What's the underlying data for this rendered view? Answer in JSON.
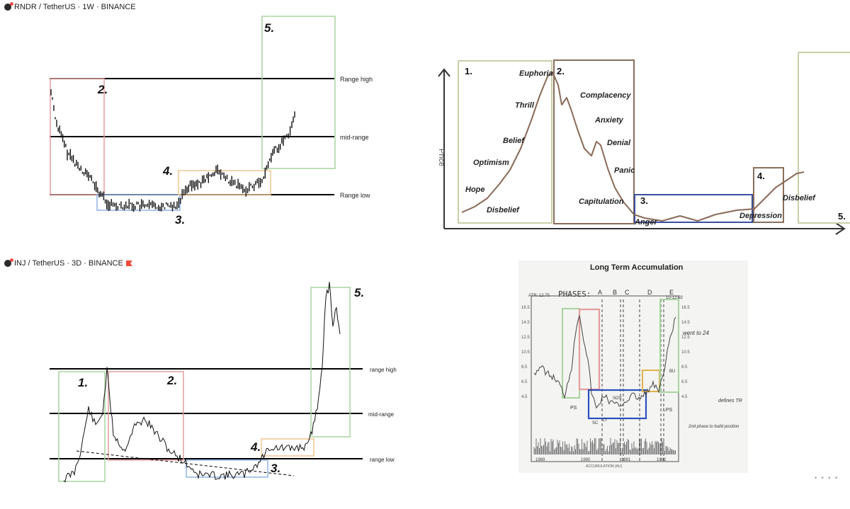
{
  "panels": {
    "rndr": {
      "header": "RNDR / TetherUS · 1W · BINANCE",
      "levels": {
        "high": "Range high",
        "mid": "mid-range",
        "low": "Range low"
      },
      "phases": {
        "p2": "2.",
        "p3": "3.",
        "p4": "4.",
        "p5": "5."
      }
    },
    "inj": {
      "header": "INJ / TetherUS · 3D · BINANCE",
      "levels": {
        "high": "range high",
        "mid": "mid-range",
        "low": "range low"
      },
      "phases": {
        "p1": "1.",
        "p2": "2.",
        "p3": "3.",
        "p4": "4.",
        "p5": "5."
      }
    },
    "cycle": {
      "y_axis_label": "Price",
      "phases": {
        "p1": "1.",
        "p2": "2.",
        "p3": "3.",
        "p4": "4.",
        "p5": "5."
      },
      "emotions": [
        "Euphoria",
        "Thrill",
        "Belief",
        "Optimism",
        "Hope",
        "Disbelief",
        "Complacency",
        "Anxiety",
        "Denial",
        "Panic",
        "Capitulation",
        "Anger",
        "Depression",
        "Disbelief"
      ]
    },
    "wyckoff": {
      "title": "Long Term Accumulation",
      "phases_label": "PHASES:",
      "phase_letters": [
        "A",
        "B",
        "C",
        "D",
        "E"
      ],
      "annotations": {
        "atr": "ATR: 12.75",
        "date": "10-12-92",
        "target": "went to 24",
        "defines": "defines TR",
        "build": "2nd phase to build position",
        "lps": "LPS",
        "ps": "PS",
        "sc": "SC",
        "lt": "LT",
        "sos": "SOS",
        "bu": "BU"
      },
      "y_ticks": [
        "16.5",
        "14.5",
        "12.5",
        "10.5",
        "8.5",
        "6.5",
        "4.5"
      ],
      "x_ticks": [
        "1989",
        "1990",
        "1991",
        "1992"
      ],
      "footer": "ACCUMULATION (AU)"
    }
  },
  "colors": {
    "green": "#a9d4a0",
    "red": "#e59d9d",
    "blue": "#8fb3e2",
    "orange": "#f3c58f",
    "cycle_green": "#c8d0a8",
    "cycle_brown": "#8a6e5a",
    "cycle_blue": "#3a4fa0",
    "curve": "#8a6a58"
  },
  "bottom_right_text": "• • • •"
}
